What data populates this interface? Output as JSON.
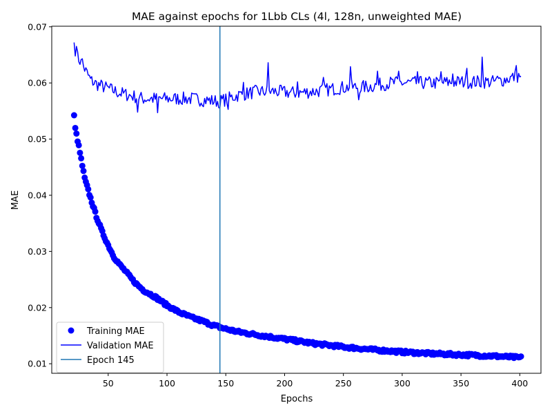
{
  "chart_data": {
    "type": "line",
    "title": "MAE against epochs for 1Lbb CLs (4l, 128n, unweighted MAE)",
    "xlabel": "Epochs",
    "ylabel": "MAE",
    "xlim": [
      2,
      418
    ],
    "ylim": [
      0.0083,
      0.0701
    ],
    "xticks": [
      50,
      100,
      150,
      200,
      250,
      300,
      350,
      400
    ],
    "yticks": [
      0.01,
      0.02,
      0.03,
      0.04,
      0.05,
      0.06,
      0.07
    ],
    "grid": false,
    "legend_position": "lower-left",
    "x_start": 21,
    "x_end": 401,
    "series": [
      {
        "name": "Training MAE",
        "kind": "scatter",
        "color": "#0000ff",
        "curve_knots": [
          [
            21,
            0.0541
          ],
          [
            22,
            0.0519
          ],
          [
            25,
            0.0487
          ],
          [
            30,
            0.043
          ],
          [
            35,
            0.0395
          ],
          [
            40,
            0.0362
          ],
          [
            45,
            0.0334
          ],
          [
            50,
            0.0311
          ],
          [
            55,
            0.029
          ],
          [
            60,
            0.0276
          ],
          [
            65,
            0.0264
          ],
          [
            70,
            0.0251
          ],
          [
            75,
            0.024
          ],
          [
            80,
            0.0231
          ],
          [
            90,
            0.0219
          ],
          [
            100,
            0.0204
          ],
          [
            110,
            0.0192
          ],
          [
            120,
            0.0183
          ],
          [
            130,
            0.0176
          ],
          [
            140,
            0.0168
          ],
          [
            150,
            0.0162
          ],
          [
            160,
            0.0157
          ],
          [
            175,
            0.0152
          ],
          [
            200,
            0.0144
          ],
          [
            225,
            0.0136
          ],
          [
            250,
            0.013
          ],
          [
            275,
            0.0125
          ],
          [
            300,
            0.0121
          ],
          [
            325,
            0.0118
          ],
          [
            350,
            0.0116
          ],
          [
            375,
            0.0114
          ],
          [
            400,
            0.0111
          ]
        ]
      },
      {
        "name": "Validation MAE",
        "kind": "line",
        "color": "#0000ff",
        "curve_knots": [
          [
            21,
            0.0672
          ],
          [
            23,
            0.0648
          ],
          [
            26,
            0.064
          ],
          [
            30,
            0.0625
          ],
          [
            35,
            0.0605
          ],
          [
            40,
            0.0598
          ],
          [
            50,
            0.059
          ],
          [
            60,
            0.0582
          ],
          [
            70,
            0.0577
          ],
          [
            80,
            0.0572
          ],
          [
            100,
            0.0572
          ],
          [
            120,
            0.0572
          ],
          [
            145,
            0.0567
          ],
          [
            160,
            0.0578
          ],
          [
            175,
            0.0584
          ],
          [
            190,
            0.0585
          ],
          [
            210,
            0.0582
          ],
          [
            230,
            0.0586
          ],
          [
            250,
            0.0592
          ],
          [
            270,
            0.0593
          ],
          [
            290,
            0.06
          ],
          [
            310,
            0.06
          ],
          [
            330,
            0.06
          ],
          [
            350,
            0.0602
          ],
          [
            380,
            0.0602
          ],
          [
            400,
            0.0613
          ]
        ],
        "spikes": [
          [
            21,
            0.0672
          ],
          [
            23,
            0.0665
          ],
          [
            28,
            0.0643
          ],
          [
            75,
            0.0548
          ],
          [
            92,
            0.0547
          ],
          [
            144,
            0.0556
          ],
          [
            152,
            0.0553
          ],
          [
            165,
            0.0601
          ],
          [
            186,
            0.0636
          ],
          [
            211,
            0.0602
          ],
          [
            233,
            0.061
          ],
          [
            256,
            0.0629
          ],
          [
            263,
            0.057
          ],
          [
            279,
            0.0621
          ],
          [
            297,
            0.0621
          ],
          [
            313,
            0.062
          ],
          [
            333,
            0.062
          ],
          [
            343,
            0.0616
          ],
          [
            355,
            0.0626
          ],
          [
            368,
            0.0646
          ],
          [
            381,
            0.0612
          ],
          [
            397,
            0.0631
          ],
          [
            401,
            0.0612
          ]
        ]
      }
    ],
    "vline": {
      "label": "Epoch 145",
      "x": 145,
      "color": "#1f77b4"
    }
  }
}
